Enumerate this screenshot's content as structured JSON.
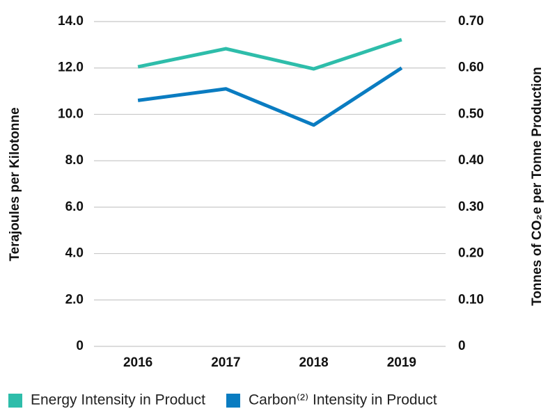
{
  "chart_data": {
    "type": "line",
    "categories": [
      "2016",
      "2017",
      "2018",
      "2019"
    ],
    "y_label": "Terajoules per Kilotonne",
    "y2_label": "Tonnes of CO₂e per Tonne Production",
    "series": [
      {
        "name": "Energy Intensity in Product",
        "color": "#2ebdaa",
        "values": [
          12.05,
          12.83,
          11.96,
          13.22
        ]
      },
      {
        "name": "Carbon⁽²⁾ Intensity in Product",
        "color": "#0a7cc1",
        "axis": "y2",
        "values": [
          0.53,
          0.555,
          0.477,
          0.6
        ]
      }
    ],
    "ylim": [
      0,
      14
    ],
    "yticks": [
      0,
      {
        "value": 2,
        "label": "2.0"
      },
      {
        "value": 4,
        "label": "4.0"
      },
      {
        "value": 6,
        "label": "6.0"
      },
      {
        "value": 8,
        "label": "8.0"
      },
      {
        "value": 10,
        "label": "10.0"
      },
      {
        "value": 12,
        "label": "12.0"
      },
      {
        "value": 14,
        "label": "14.0"
      }
    ],
    "y2lim": [
      0,
      0.7
    ],
    "y2ticks": [
      0,
      {
        "value": 0.1,
        "label": "0.10"
      },
      {
        "value": 0.2,
        "label": "0.20"
      },
      {
        "value": 0.3,
        "label": "0.30"
      },
      {
        "value": 0.4,
        "label": "0.40"
      },
      {
        "value": 0.5,
        "label": "0.50"
      },
      {
        "value": 0.6,
        "label": "0.60"
      },
      {
        "value": 0.7,
        "label": "0.70"
      }
    ],
    "grid": true,
    "legend": "bottom"
  }
}
